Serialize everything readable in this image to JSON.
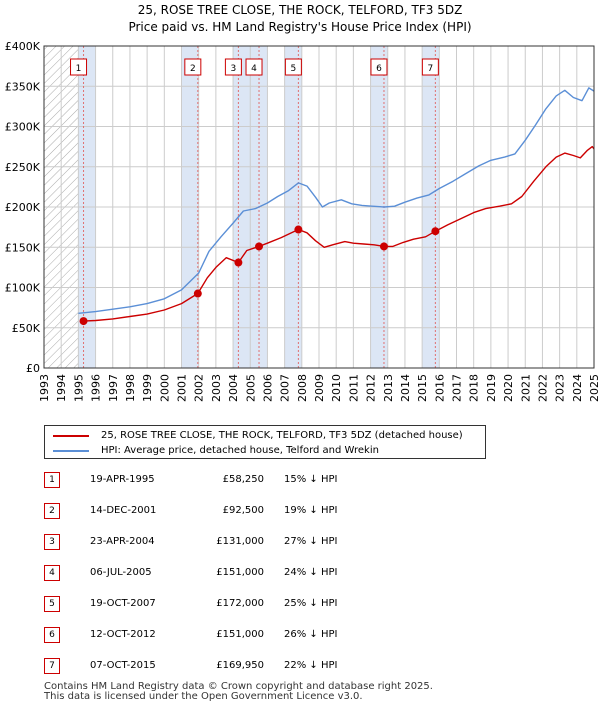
{
  "title": {
    "line1": "25, ROSE TREE CLOSE, THE ROCK, TELFORD, TF3 5DZ",
    "line2": "Price paid vs. HM Land Registry's House Price Index (HPI)"
  },
  "colors": {
    "price_paid": "#cc0000",
    "hpi": "#5b8fd6",
    "sale_shade": "#dce6f5",
    "sale_line": "#e07070",
    "grid": "#cccccc",
    "hatch": "#999999"
  },
  "chart_data": {
    "type": "line",
    "title": "Price paid vs. HM Land Registry's House Price Index (HPI)",
    "xlim": [
      1993,
      2025
    ],
    "ylim": [
      0,
      400000
    ],
    "x_ticks": [
      "1993",
      "1994",
      "1995",
      "1996",
      "1997",
      "1998",
      "1999",
      "2000",
      "2001",
      "2002",
      "2003",
      "2004",
      "2005",
      "2006",
      "2007",
      "2008",
      "2009",
      "2010",
      "2011",
      "2012",
      "2013",
      "2014",
      "2015",
      "2016",
      "2017",
      "2018",
      "2019",
      "2020",
      "2021",
      "2022",
      "2023",
      "2024",
      "2025"
    ],
    "y_ticks": [
      {
        "value": 0,
        "label": "£0"
      },
      {
        "value": 50000,
        "label": "£50K"
      },
      {
        "value": 100000,
        "label": "£100K"
      },
      {
        "value": 150000,
        "label": "£150K"
      },
      {
        "value": 200000,
        "label": "£200K"
      },
      {
        "value": 250000,
        "label": "£250K"
      },
      {
        "value": 300000,
        "label": "£300K"
      },
      {
        "value": 350000,
        "label": "£350K"
      },
      {
        "value": 400000,
        "label": "£400K"
      }
    ],
    "series": [
      {
        "name": "25, ROSE TREE CLOSE, THE ROCK, TELFORD, TF3 5DZ (detached house)",
        "color": "#cc0000",
        "points": [
          [
            1995.3,
            58250
          ],
          [
            1996,
            59000
          ],
          [
            1997,
            61000
          ],
          [
            1998,
            64000
          ],
          [
            1999,
            67000
          ],
          [
            2000,
            72000
          ],
          [
            2001,
            80000
          ],
          [
            2001.95,
            92500
          ],
          [
            2002.5,
            112000
          ],
          [
            2003,
            125000
          ],
          [
            2003.6,
            137000
          ],
          [
            2004.31,
            131000
          ],
          [
            2004.8,
            146000
          ],
          [
            2005.51,
            151000
          ],
          [
            2006,
            155000
          ],
          [
            2006.8,
            162000
          ],
          [
            2007.8,
            172000
          ],
          [
            2008.3,
            168000
          ],
          [
            2008.8,
            158000
          ],
          [
            2009.3,
            150000
          ],
          [
            2009.8,
            153000
          ],
          [
            2010.5,
            157000
          ],
          [
            2011,
            155000
          ],
          [
            2011.6,
            154000
          ],
          [
            2012.2,
            153000
          ],
          [
            2012.78,
            151000
          ],
          [
            2013.3,
            151000
          ],
          [
            2013.9,
            156000
          ],
          [
            2014.5,
            160000
          ],
          [
            2015.2,
            163000
          ],
          [
            2015.77,
            169950
          ],
          [
            2016.5,
            178000
          ],
          [
            2017.2,
            185000
          ],
          [
            2018,
            193000
          ],
          [
            2018.7,
            198000
          ],
          [
            2019.5,
            201000
          ],
          [
            2020.2,
            204000
          ],
          [
            2020.8,
            213000
          ],
          [
            2021.5,
            232000
          ],
          [
            2022.2,
            250000
          ],
          [
            2022.8,
            262000
          ],
          [
            2023.3,
            267000
          ],
          [
            2023.8,
            264000
          ],
          [
            2024.2,
            261000
          ],
          [
            2024.6,
            270000
          ],
          [
            2024.9,
            275000
          ],
          [
            2025,
            272000
          ]
        ]
      },
      {
        "name": "HPI: Average price, detached house, Telford and Wrekin",
        "color": "#5b8fd6",
        "points": [
          [
            1995,
            68000
          ],
          [
            1996,
            70000
          ],
          [
            1997,
            73000
          ],
          [
            1998,
            76000
          ],
          [
            1999,
            80000
          ],
          [
            2000,
            86000
          ],
          [
            2001,
            97000
          ],
          [
            2002,
            118000
          ],
          [
            2002.6,
            145000
          ],
          [
            2003.3,
            163000
          ],
          [
            2004,
            180000
          ],
          [
            2004.6,
            195000
          ],
          [
            2005.3,
            198000
          ],
          [
            2006,
            205000
          ],
          [
            2006.6,
            213000
          ],
          [
            2007.2,
            220000
          ],
          [
            2007.8,
            230000
          ],
          [
            2008.3,
            226000
          ],
          [
            2008.8,
            212000
          ],
          [
            2009.2,
            200000
          ],
          [
            2009.6,
            205000
          ],
          [
            2010.3,
            209000
          ],
          [
            2010.9,
            204000
          ],
          [
            2011.5,
            202000
          ],
          [
            2012.1,
            201000
          ],
          [
            2012.8,
            200000
          ],
          [
            2013.4,
            201000
          ],
          [
            2014,
            206000
          ],
          [
            2014.7,
            211000
          ],
          [
            2015.4,
            215000
          ],
          [
            2016,
            223000
          ],
          [
            2016.8,
            232000
          ],
          [
            2017.5,
            241000
          ],
          [
            2018.3,
            251000
          ],
          [
            2019,
            258000
          ],
          [
            2019.8,
            262000
          ],
          [
            2020.4,
            266000
          ],
          [
            2021,
            283000
          ],
          [
            2021.6,
            302000
          ],
          [
            2022.2,
            322000
          ],
          [
            2022.8,
            338000
          ],
          [
            2023.3,
            345000
          ],
          [
            2023.8,
            336000
          ],
          [
            2024.3,
            332000
          ],
          [
            2024.7,
            348000
          ],
          [
            2025,
            344000
          ]
        ]
      }
    ],
    "sales": [
      {
        "num": "1",
        "x": 1995.3,
        "price": 58250
      },
      {
        "num": "2",
        "x": 2001.95,
        "price": 92500
      },
      {
        "num": "3",
        "x": 2004.31,
        "price": 131000
      },
      {
        "num": "4",
        "x": 2005.51,
        "price": 151000
      },
      {
        "num": "5",
        "x": 2007.8,
        "price": 172000
      },
      {
        "num": "6",
        "x": 2012.78,
        "price": 151000
      },
      {
        "num": "7",
        "x": 2015.77,
        "price": 169950
      }
    ]
  },
  "legend": {
    "items": [
      {
        "label": "25, ROSE TREE CLOSE, THE ROCK, TELFORD, TF3 5DZ (detached house)"
      },
      {
        "label": "HPI: Average price, detached house, Telford and Wrekin"
      }
    ]
  },
  "table": {
    "rows": [
      {
        "num": "1",
        "date": "19-APR-1995",
        "price": "£58,250",
        "hpi": "15% ↓ HPI"
      },
      {
        "num": "2",
        "date": "14-DEC-2001",
        "price": "£92,500",
        "hpi": "19% ↓ HPI"
      },
      {
        "num": "3",
        "date": "23-APR-2004",
        "price": "£131,000",
        "hpi": "27% ↓ HPI"
      },
      {
        "num": "4",
        "date": "06-JUL-2005",
        "price": "£151,000",
        "hpi": "24% ↓ HPI"
      },
      {
        "num": "5",
        "date": "19-OCT-2007",
        "price": "£172,000",
        "hpi": "25% ↓ HPI"
      },
      {
        "num": "6",
        "date": "12-OCT-2012",
        "price": "£151,000",
        "hpi": "26% ↓ HPI"
      },
      {
        "num": "7",
        "date": "07-OCT-2015",
        "price": "£169,950",
        "hpi": "22% ↓ HPI"
      }
    ]
  },
  "footer": {
    "line1": "Contains HM Land Registry data © Crown copyright and database right 2025.",
    "line2": "This data is licensed under the Open Government Licence v3.0."
  }
}
